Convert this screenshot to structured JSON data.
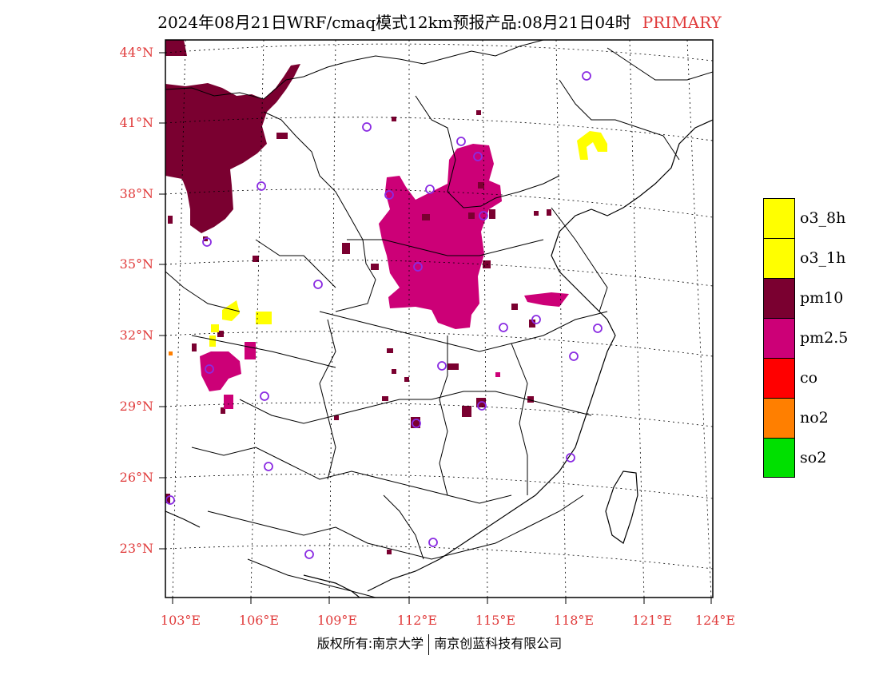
{
  "title": {
    "main": "2024年08月21日WRF/cmaq模式12km预报产品:08月21日04时",
    "tag": "PRIMARY",
    "tag_color": "#e03a3a"
  },
  "map": {
    "lat_labels": [
      "44°N",
      "41°N",
      "38°N",
      "35°N",
      "32°N",
      "29°N",
      "26°N",
      "23°N"
    ],
    "lon_labels": [
      "103°E",
      "106°E",
      "109°E",
      "112°E",
      "115°E",
      "118°E",
      "121°E",
      "124°E"
    ],
    "station_marker_color": "#8a2be2"
  },
  "legend": [
    {
      "label": "o3_8h",
      "color": "#ffff00"
    },
    {
      "label": "o3_1h",
      "color": "#ffff00"
    },
    {
      "label": "pm10",
      "color": "#7a0030"
    },
    {
      "label": "pm2.5",
      "color": "#cc0077"
    },
    {
      "label": "co",
      "color": "#ff0000"
    },
    {
      "label": "no2",
      "color": "#ff7f00"
    },
    {
      "label": "so2",
      "color": "#00e000"
    }
  ],
  "footer": {
    "left": "版权所有:南京大学",
    "right": "南京创蓝科技有限公司"
  }
}
